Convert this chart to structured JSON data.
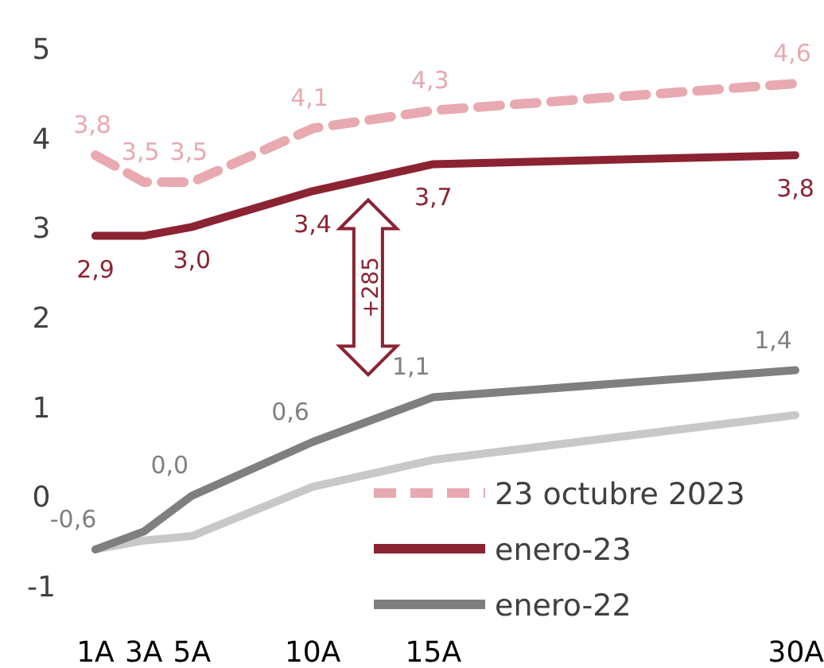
{
  "chart_data": {
    "type": "line",
    "x": [
      1,
      3,
      5,
      10,
      15,
      30
    ],
    "xlim": [
      1,
      30
    ],
    "xticks": [
      {
        "value": 1,
        "label": "1A"
      },
      {
        "value": 3,
        "label": "3A"
      },
      {
        "value": 5,
        "label": "5A"
      },
      {
        "value": 10,
        "label": "10A"
      },
      {
        "value": 15,
        "label": "15A"
      },
      {
        "value": 30,
        "label": "30A"
      }
    ],
    "ylim": [
      -1,
      5
    ],
    "yticks": [
      -1,
      0,
      1,
      2,
      3,
      4,
      5
    ],
    "grid": false,
    "legend": "bottom right",
    "marker": "none",
    "series": [
      {
        "name": "23 octubre 2023",
        "color": "#e8a9b0",
        "line_style": "dashed",
        "values": [
          3.8,
          3.5,
          3.5,
          4.1,
          4.3,
          4.6
        ],
        "value_labels": [
          "3,8",
          "3,5",
          "3,5",
          "4,1",
          "4,3",
          "4,6"
        ]
      },
      {
        "name": "enero-23",
        "color": "#8b2332",
        "line_style": "solid",
        "values": [
          2.9,
          2.9,
          3.0,
          3.4,
          3.7,
          3.8
        ],
        "value_labels": [
          "2,9",
          null,
          "3,0",
          "3,4",
          "3,7",
          "3,8"
        ]
      },
      {
        "name": "enero-22",
        "color": "#7f7f7f",
        "line_style": "solid",
        "values": [
          -0.6,
          -0.4,
          0.0,
          0.6,
          1.1,
          1.4
        ],
        "value_labels": [
          "-0,6",
          null,
          "0,0",
          "0,6",
          "1,1",
          "1,4"
        ]
      },
      {
        "color": "#c8c8c8",
        "line_style": "solid",
        "values": [
          -0.6,
          -0.5,
          -0.45,
          0.1,
          0.4,
          0.9
        ]
      }
    ],
    "annotations": [
      "+285"
    ]
  }
}
